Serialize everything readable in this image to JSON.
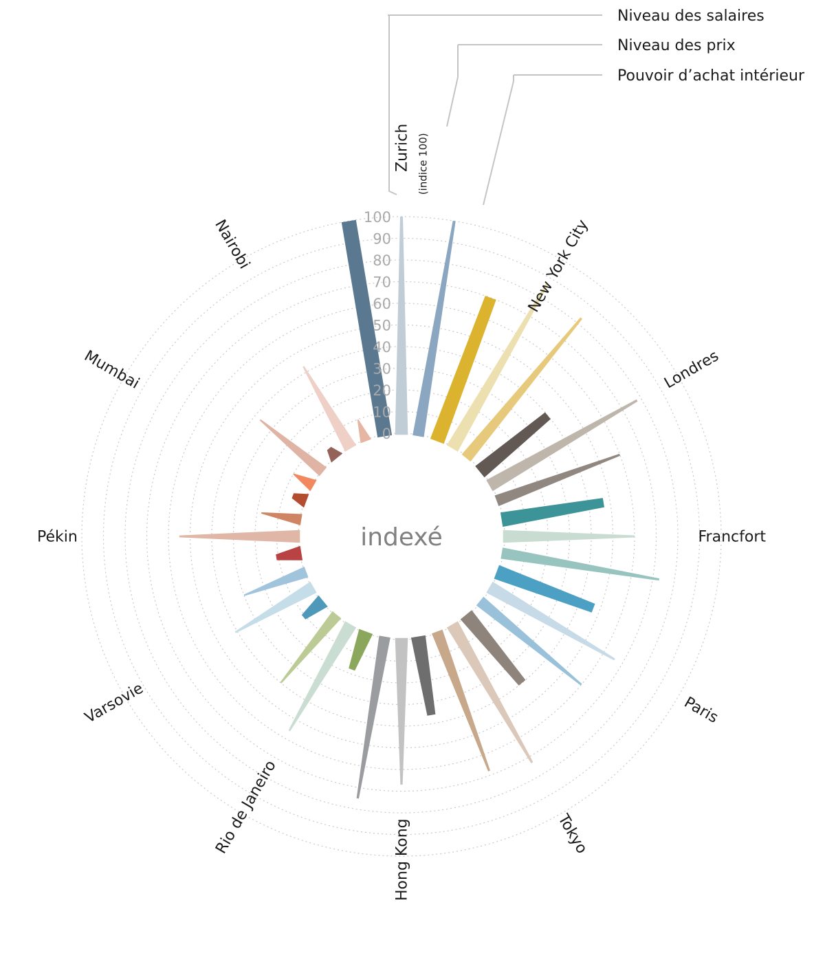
{
  "center_label": "indexé",
  "legend": [
    {
      "label": "Niveau des salaires"
    },
    {
      "label": "Niveau des prix"
    },
    {
      "label": "Pouvoir d’achat intérieur"
    }
  ],
  "chart_data": {
    "type": "radial-bar",
    "index_note": "(indice 100)",
    "ticks": [
      0,
      10,
      20,
      30,
      40,
      50,
      60,
      70,
      80,
      90,
      100
    ],
    "rlim": [
      0,
      100
    ],
    "grid": true,
    "series_names": [
      "Niveau des salaires",
      "Niveau des prix",
      "Pouvoir d’achat intérieur"
    ],
    "cities": [
      {
        "name": "Zurich",
        "values": [
          100,
          100,
          100
        ],
        "colors": [
          "#5b7891",
          "#c0ccd6",
          "#8aa6c1"
        ]
      },
      {
        "name": "New York City",
        "values": [
          70,
          87,
          83
        ],
        "colors": [
          "#dbb32f",
          "#ede0b0",
          "#e6c97a"
        ]
      },
      {
        "name": "Londres",
        "values": [
          40,
          78,
          60
        ],
        "colors": [
          "#625955",
          "#beb5ab",
          "#8f8780"
        ]
      },
      {
        "name": "Francfort",
        "values": [
          47,
          60,
          73
        ],
        "colors": [
          "#3c9499",
          "#c8dcd2",
          "#98c4c0"
        ]
      },
      {
        "name": "Paris",
        "values": [
          47,
          66,
          60
        ],
        "colors": [
          "#4ba0c3",
          "#c6dbe7",
          "#99c1da"
        ]
      },
      {
        "name": "Tokyo",
        "values": [
          40,
          73,
          68
        ],
        "colors": [
          "#8e847c",
          "#dcc8b8",
          "#c8a88a"
        ]
      },
      {
        "name": "Hong Kong",
        "values": [
          36,
          67,
          75
        ],
        "colors": [
          "#6e6e6e",
          "#c2c2c2",
          "#9b9c9f"
        ]
      },
      {
        "name": "Rio de Janeiro",
        "values": [
          18,
          56,
          40
        ],
        "colors": [
          "#8ba75c",
          "#c9ddd3",
          "#bccb95"
        ]
      },
      {
        "name": "Varsovie",
        "values": [
          11,
          41,
          30
        ],
        "colors": [
          "#4e99ba",
          "#c5dde8",
          "#9fc4db"
        ]
      },
      {
        "name": "Pékin",
        "values": [
          11,
          55,
          18
        ],
        "colors": [
          "#b94242",
          "#e0b7a6",
          "#cf8463"
        ]
      },
      {
        "name": "Mumbai",
        "values": [
          6,
          10,
          37
        ],
        "colors": [
          "#b44d30",
          "#f2895e",
          "#e0b4a4"
        ]
      },
      {
        "name": "Nairobi",
        "values": [
          5,
          43,
          10
        ],
        "colors": [
          "#946259",
          "#efd0c6",
          "#e6b6a4"
        ]
      }
    ]
  }
}
